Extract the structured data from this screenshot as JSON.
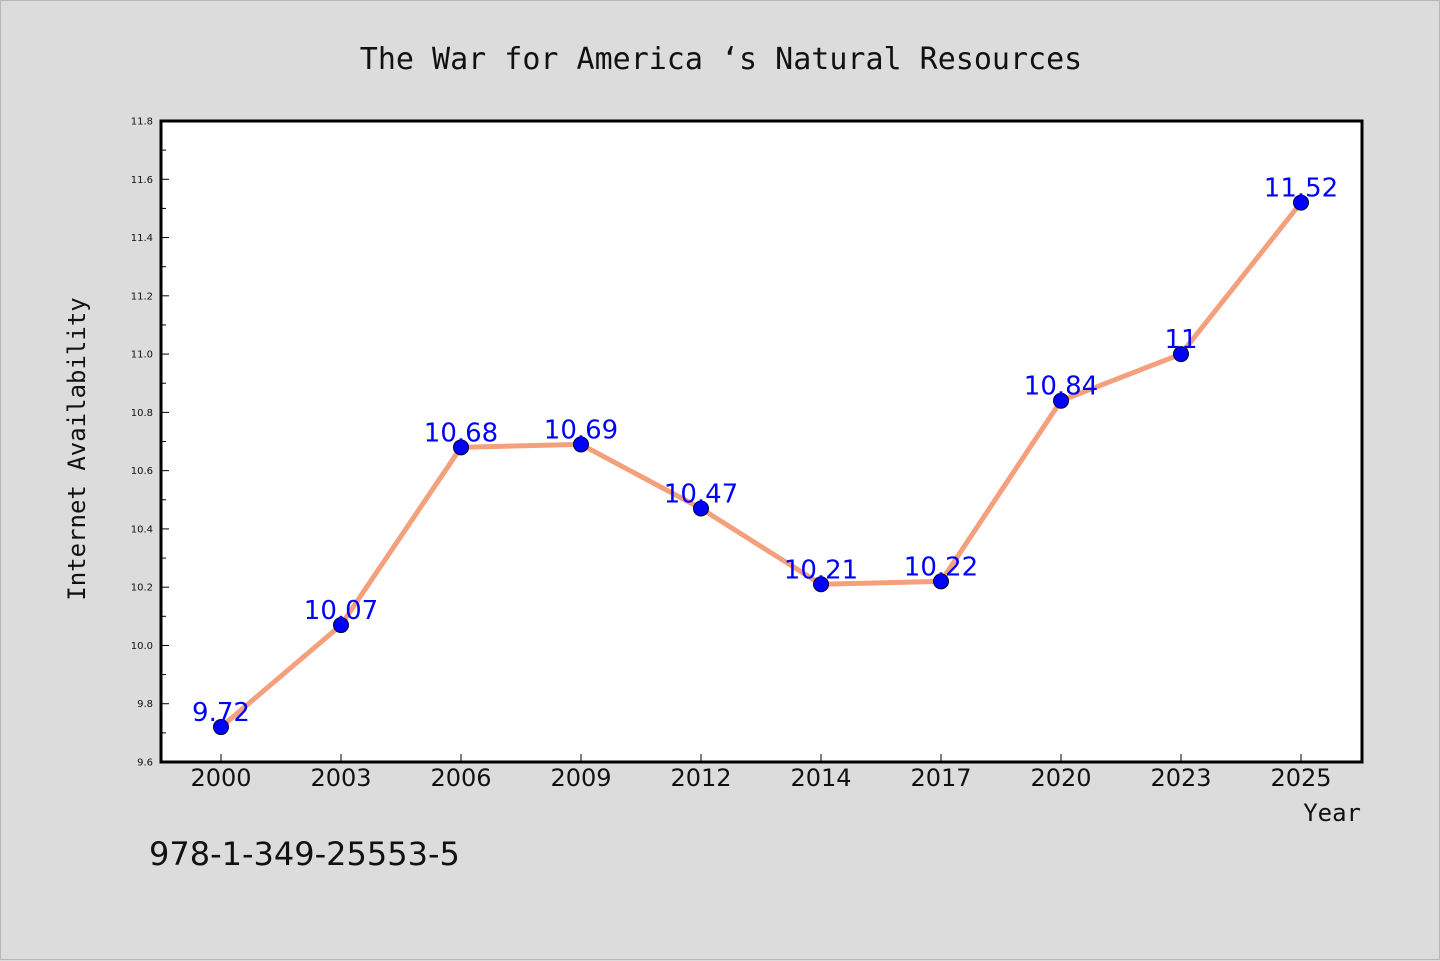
{
  "chart_data": {
    "type": "line",
    "title": "The War for America ‘s Natural Resources",
    "xlabel": "Year",
    "ylabel": "Internet Availability",
    "categories": [
      "2000",
      "2003",
      "2006",
      "2009",
      "2012",
      "2014",
      "2017",
      "2020",
      "2023",
      "2025"
    ],
    "series": [
      {
        "values": [
          9.72,
          10.07,
          10.68,
          10.69,
          10.47,
          10.21,
          10.22,
          10.84,
          11,
          11.52
        ],
        "data_labels": [
          "9.72",
          "10.07",
          "10.68",
          "10.69",
          "10.47",
          "10.21",
          "10.22",
          "10.84",
          "11",
          "11.52"
        ],
        "line_color": "#f4a07c",
        "marker_color": "#0000ff"
      }
    ],
    "ylim": [
      9.6,
      11.8
    ],
    "yticks": [
      "9.6",
      "9.8",
      "10.0",
      "10.2",
      "10.4",
      "10.6",
      "10.8",
      "11.0",
      "11.2",
      "11.4",
      "11.6",
      "11.8"
    ],
    "grid": false,
    "legend": "none"
  },
  "footer": {
    "isbn": "978-1-349-25553-5"
  },
  "colors": {
    "background": "#dcdcdc",
    "plot_area": "#ffffff",
    "label_color": "#0000ff"
  }
}
